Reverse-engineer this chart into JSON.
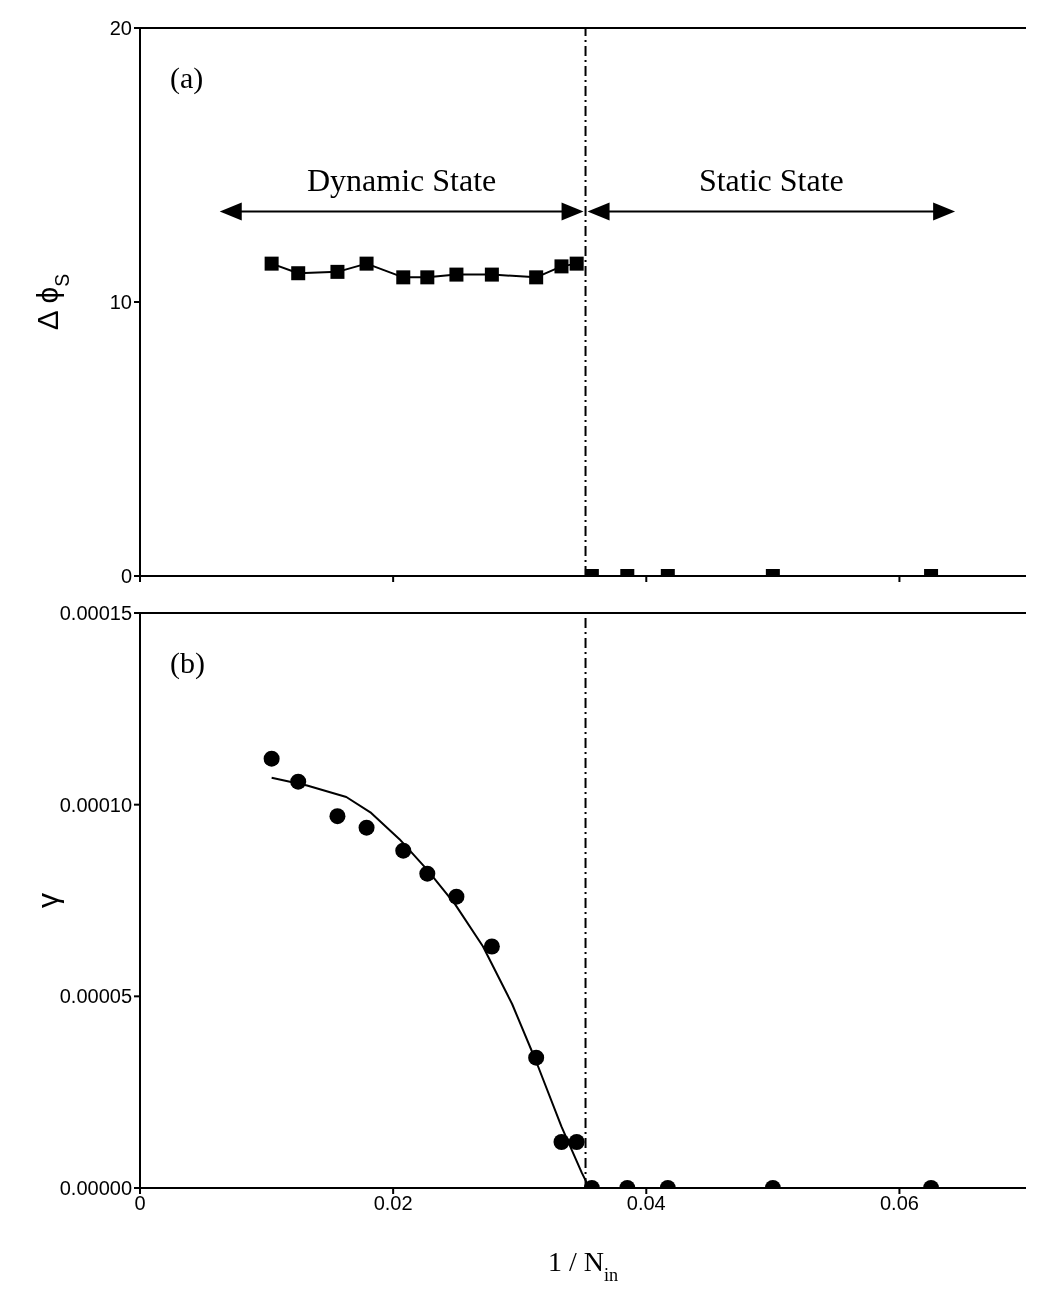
{
  "chart_data": [
    {
      "type": "line",
      "ylabel": "Δ ϕ$_{S}$",
      "xlim": [
        0,
        0.07
      ],
      "xticks": [
        0,
        0.02,
        0.04,
        0.06
      ],
      "ylim": [
        0,
        20
      ],
      "yticks": [
        0,
        10,
        20
      ],
      "tick_labels": "y",
      "grid": false,
      "legend": false,
      "series": [
        {
          "marker": "square",
          "color": "#000000",
          "x": [
            0.0104,
            0.0125,
            0.0156,
            0.0179,
            0.0208,
            0.0227,
            0.025,
            0.0278,
            0.0313,
            0.0333,
            0.0345
          ],
          "values": [
            11.4,
            11.05,
            11.1,
            11.4,
            10.9,
            10.9,
            11.0,
            11.0,
            10.9,
            11.3,
            11.4
          ]
        },
        {
          "type": "scatter",
          "marker": "square",
          "color": "#000000",
          "x": [
            0.0357,
            0.0385,
            0.0417,
            0.05,
            0.0625
          ],
          "values": [
            0,
            0,
            0,
            0,
            0
          ]
        }
      ],
      "ref_lines": [
        {
          "axis": "x",
          "value": 0.0352,
          "line_style": "dashed",
          "color": "#000000"
        }
      ],
      "annotations": [
        "(a)",
        "Dynamic State",
        "Static State"
      ]
    },
    {
      "type": "scatter",
      "xlabel": "1 / N$_{in}$",
      "ylabel": "γ",
      "xlim": [
        0,
        0.07
      ],
      "xticks": [
        0,
        0.02,
        0.04,
        0.06
      ],
      "ylim": [
        0,
        0.00015
      ],
      "yticks": [
        {
          "value": 0,
          "label": "0.00000"
        },
        {
          "value": 5e-05,
          "label": "0.00005"
        },
        {
          "value": 0.0001,
          "label": "0.00010"
        },
        {
          "value": 0.00015,
          "label": "0.00015"
        }
      ],
      "grid": false,
      "legend": false,
      "series": [
        {
          "marker": "circle",
          "color": "#000000",
          "x": [
            0.0104,
            0.0125,
            0.0156,
            0.0179,
            0.0208,
            0.0227,
            0.025,
            0.0278,
            0.0313,
            0.0333,
            0.0345,
            0.0357,
            0.0385,
            0.0417,
            0.05,
            0.0625
          ],
          "values": [
            0.000112,
            0.000106,
            9.7e-05,
            9.4e-05,
            8.8e-05,
            8.2e-05,
            7.6e-05,
            6.3e-05,
            3.4e-05,
            1.2e-05,
            1.2e-05,
            0,
            0,
            0,
            0,
            0
          ]
        },
        {
          "type": "line",
          "marker": "none",
          "color": "#000000",
          "x": [
            0.0104,
            0.0132,
            0.0163,
            0.0182,
            0.0205,
            0.0227,
            0.0249,
            0.0271,
            0.0294,
            0.0313,
            0.0333,
            0.0349,
            0.0355
          ],
          "values": [
            0.000107,
            0.000105,
            0.000102,
            9.8e-05,
            9.1e-05,
            8.3e-05,
            7.4e-05,
            6.3e-05,
            4.8e-05,
            3.3e-05,
            1.6e-05,
            4e-06,
            0
          ]
        }
      ],
      "ref_lines": [
        {
          "axis": "x",
          "value": 0.0352,
          "line_style": "dashed",
          "color": "#000000"
        }
      ],
      "annotations": [
        "(b)"
      ]
    }
  ]
}
